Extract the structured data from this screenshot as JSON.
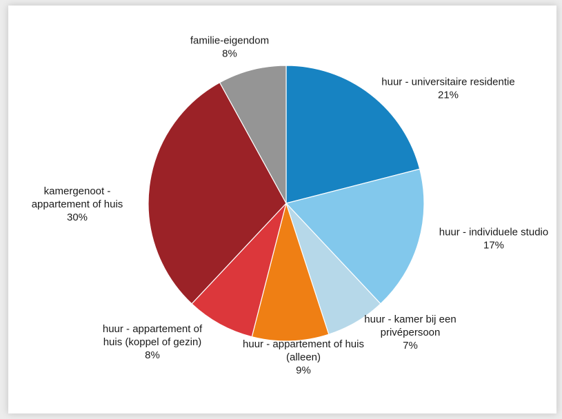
{
  "chart_data": {
    "type": "pie",
    "title": "",
    "slices": [
      {
        "label": [
          "huur - universitaire residentie"
        ],
        "value": 21,
        "value_label": "21%",
        "color": "#1783c2"
      },
      {
        "label": [
          "huur - individuele studio"
        ],
        "value": 17,
        "value_label": "17%",
        "color": "#82c8ec"
      },
      {
        "label": [
          "huur - kamer bij een",
          "privépersoon"
        ],
        "value": 7,
        "value_label": "7%",
        "color": "#b6d8e9"
      },
      {
        "label": [
          "huur - appartement of huis",
          "(alleen)"
        ],
        "value": 9,
        "value_label": "9%",
        "color": "#ef7f14"
      },
      {
        "label": [
          "huur - appartement of",
          "huis (koppel of gezin)"
        ],
        "value": 8,
        "value_label": "8%",
        "color": "#dc373b"
      },
      {
        "label": [
          "kamergenoot -",
          "appartement of huis"
        ],
        "value": 30,
        "value_label": "30%",
        "color": "#9b2227"
      },
      {
        "label": [
          "familie-eigendom"
        ],
        "value": 8,
        "value_label": "8%",
        "color": "#959595"
      }
    ]
  }
}
